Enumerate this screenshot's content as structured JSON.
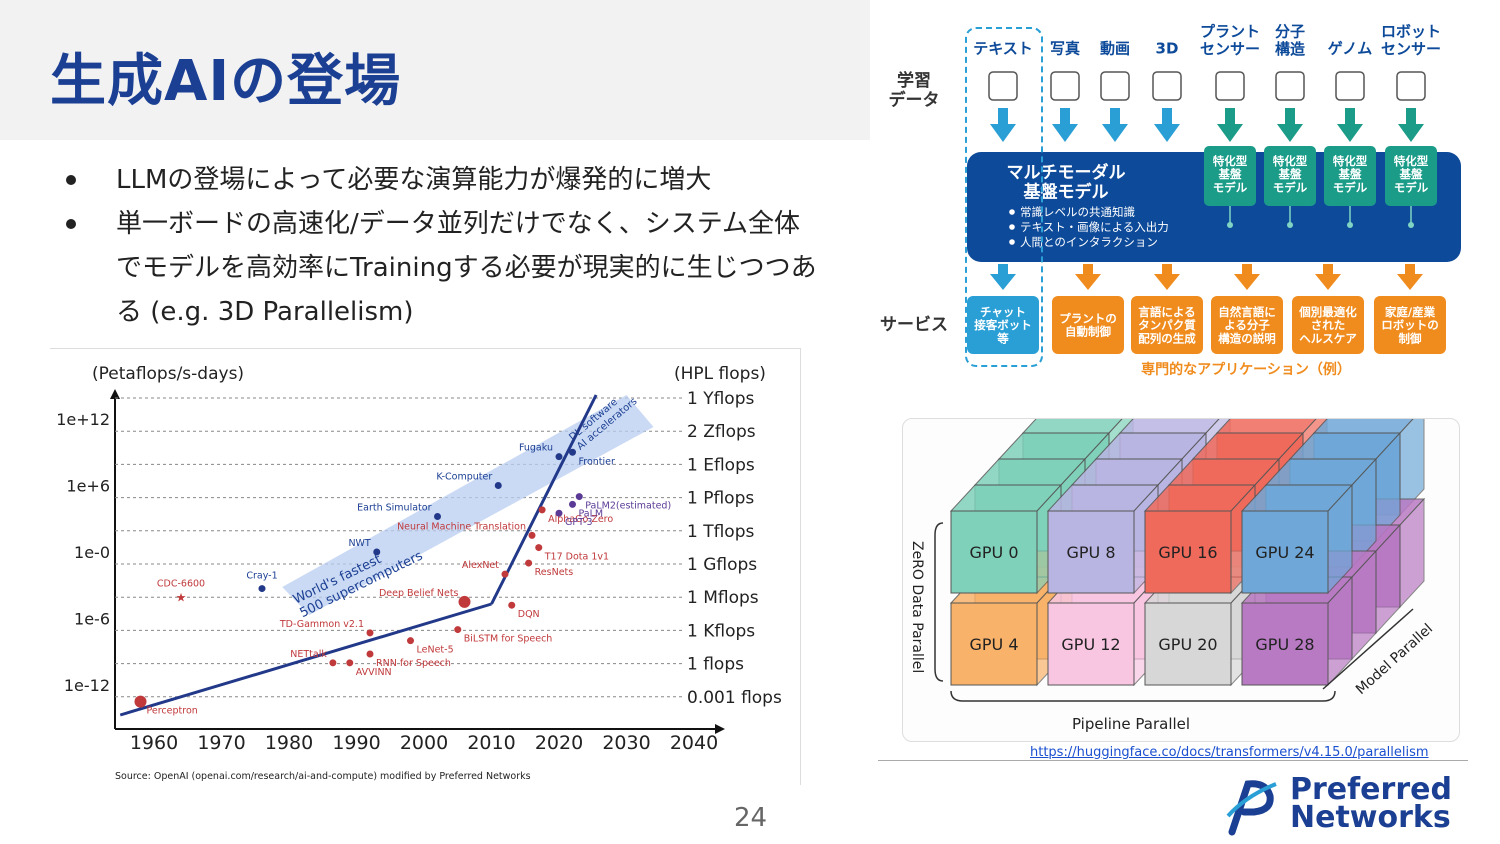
{
  "slide": {
    "title": "生成AIの登場",
    "bullets": [
      "LLMの登場によって必要な演算能力が爆発的に増大",
      "単一ボードの高速化/データ並列だけでなく、システム全体でモデルを高効率にTrainingする必要が現実的に生じつつある (e.g. 3D Parallelism)"
    ],
    "page_number": "24",
    "logo": {
      "line1": "Preferred",
      "line2": "Networks"
    },
    "source_url": "https://huggingface.co/docs/transformers/v4.15.0/parallelism"
  },
  "colors": {
    "title": "#1b3f93",
    "chart_red": "#c0393b",
    "chart_blue": "#22398a",
    "mm_blue": "#0d4a9a",
    "orange": "#f08c1e",
    "teal": "#1b9c88",
    "cyan": "#2a9fd6"
  },
  "chart_data": {
    "type": "scatter",
    "left_axis_label": "(Petaflops/s-days)",
    "right_axis_label": "(HPL flops)",
    "y_ticks": [
      "1e+12",
      "1e+6",
      "1e-0",
      "1e-6",
      "1e-12"
    ],
    "right_ticks": [
      "1 Yflops",
      "2 Zflops",
      "1 Eflops",
      "1 Pflops",
      "1 Tflops",
      "1 Gflops",
      "1 Mflops",
      "1 Kflops",
      "1 flops",
      "0.001 flops"
    ],
    "x_ticks": [
      "1960",
      "1970",
      "1980",
      "1990",
      "2000",
      "2010",
      "2020",
      "2030",
      "2040"
    ],
    "band_label_1": "World's fastest",
    "band_label_2": "500 supercomputers",
    "dl_label_1": "DL software",
    "dl_label_2": "AI accelerators",
    "source": "Source: OpenAI (openai.com/research/ai-and-compute) modified by Preferred Networks",
    "points": [
      {
        "name": "Perceptron",
        "x": 1958,
        "y": -13.5,
        "color": "red"
      },
      {
        "name": "NETtalk",
        "x": 1986.5,
        "y": -10,
        "color": "red"
      },
      {
        "name": "AVVINN",
        "x": 1989,
        "y": -10,
        "color": "red"
      },
      {
        "name": "RNN for Speech",
        "x": 1992,
        "y": -9.2,
        "color": "red"
      },
      {
        "name": "LeNet-5",
        "x": 1998,
        "y": -8,
        "color": "red"
      },
      {
        "name": "TD-Gammon v2.1",
        "x": 1992,
        "y": -7.3,
        "color": "red"
      },
      {
        "name": "BiLSTM for Speech",
        "x": 2005,
        "y": -7,
        "color": "red"
      },
      {
        "name": "Deep Belief Nets",
        "x": 2006,
        "y": -4.5,
        "color": "red"
      },
      {
        "name": "DQN",
        "x": 2013,
        "y": -4.8,
        "color": "red"
      },
      {
        "name": "AlexNet",
        "x": 2012,
        "y": -2,
        "color": "red"
      },
      {
        "name": "ResNets",
        "x": 2015.5,
        "y": -1,
        "color": "red"
      },
      {
        "name": "Neural Machine Translation",
        "x": 2016,
        "y": 1.5,
        "color": "red"
      },
      {
        "name": "T17 Dota 1v1",
        "x": 2017,
        "y": 0.4,
        "color": "red"
      },
      {
        "name": "AlphaGo Zero",
        "x": 2017.5,
        "y": 3.8,
        "color": "red"
      },
      {
        "name": "GPT-3",
        "x": 2020,
        "y": 3.5,
        "color": "purple"
      },
      {
        "name": "PaLM",
        "x": 2022,
        "y": 4.3,
        "color": "purple"
      },
      {
        "name": "PaLM2(estimated)",
        "x": 2023,
        "y": 5,
        "color": "purple"
      },
      {
        "name": "CDC-6600",
        "x": 1964,
        "y": -4,
        "color": "red"
      },
      {
        "name": "Cray-1",
        "x": 1976,
        "y": -3.3,
        "color": "blue"
      },
      {
        "name": "NWT",
        "x": 1993,
        "y": 0,
        "color": "blue"
      },
      {
        "name": "Earth Simulator",
        "x": 2002,
        "y": 3.2,
        "color": "blue"
      },
      {
        "name": "K-Computer",
        "x": 2011,
        "y": 6,
        "color": "blue"
      },
      {
        "name": "Fugaku",
        "x": 2020,
        "y": 8.6,
        "color": "blue"
      },
      {
        "name": "Frontier",
        "x": 2022,
        "y": 9,
        "color": "blue"
      }
    ]
  },
  "multimodal": {
    "inputs": [
      "テキスト",
      "写真",
      "動画",
      "3D",
      "プラント\nセンサー",
      "分子\n構造",
      "ゲノム",
      "ロボット\nセンサー"
    ],
    "row_label_top": "学習\nデータ",
    "row_label_bottom": "サービス",
    "core_title": "マルチモーダル\n基盤モデル",
    "core_points": [
      "常識レベルの共通知識",
      "テキスト・画像による入出力",
      "人間とのインタラクション"
    ],
    "specialized": [
      "特化型\n基盤\nモデル",
      "特化型\n基盤\nモデル",
      "特化型\n基盤\nモデル",
      "特化型\n基盤\nモデル"
    ],
    "services": [
      "チャット\n接客ボット\n等",
      "プラントの\n自動制御",
      "言語による\nタンパク質\n配列の生成",
      "自然言語に\nよる分子\n構造の説明",
      "個別最適化\nされた\nヘルスケア",
      "家庭/産業\nロボットの\n制御"
    ],
    "caption": "専門的なアプリケーション（例）"
  },
  "parallelism": {
    "front_row_top": [
      "GPU 0",
      "GPU 8",
      "GPU 16",
      "GPU 24"
    ],
    "front_row_bottom": [
      "GPU 4",
      "GPU 12",
      "GPU 20",
      "GPU 28"
    ],
    "axis_vertical": "ZeRO Data Parallel",
    "axis_bottom": "Pipeline Parallel",
    "axis_diagonal": "Model Parallel"
  }
}
